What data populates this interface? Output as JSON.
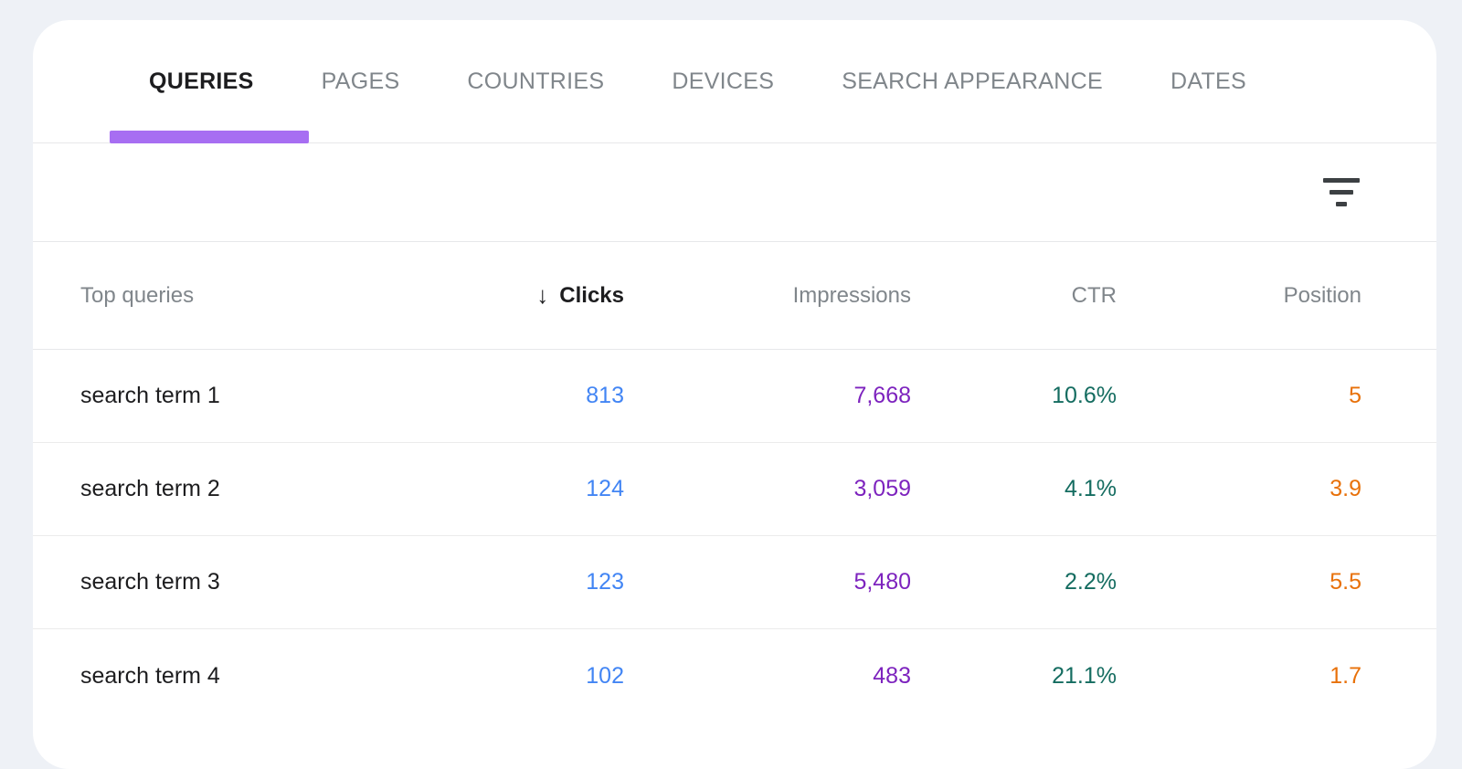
{
  "tabs": [
    {
      "label": "QUERIES",
      "active": true
    },
    {
      "label": "PAGES",
      "active": false
    },
    {
      "label": "COUNTRIES",
      "active": false
    },
    {
      "label": "DEVICES",
      "active": false
    },
    {
      "label": "SEARCH APPEARANCE",
      "active": false
    },
    {
      "label": "DATES",
      "active": false
    }
  ],
  "toolbar": {
    "filter_icon": "filter-icon"
  },
  "table": {
    "columns": [
      "Top queries",
      "Clicks",
      "Impressions",
      "CTR",
      "Position"
    ],
    "sort": {
      "column": "Clicks",
      "direction": "desc",
      "arrow": "↓"
    },
    "rows": [
      {
        "query": "search term 1",
        "clicks": "813",
        "impressions": "7,668",
        "ctr": "10.6%",
        "position": "5"
      },
      {
        "query": "search term 2",
        "clicks": "124",
        "impressions": "3,059",
        "ctr": "4.1%",
        "position": "3.9"
      },
      {
        "query": "search term 3",
        "clicks": "123",
        "impressions": "5,480",
        "ctr": "2.2%",
        "position": "5.5"
      },
      {
        "query": "search term 4",
        "clicks": "102",
        "impressions": "483",
        "ctr": "21.1%",
        "position": "1.7"
      }
    ]
  },
  "colors": {
    "page_background": "#eef1f6",
    "card_background": "#ffffff",
    "active_tab_indicator": "#a76ef2",
    "clicks": "#4285f4",
    "impressions": "#7d23be",
    "ctr": "#146c60",
    "position": "#e8710a",
    "muted_text": "#80868b",
    "text": "#1d1d1f"
  }
}
